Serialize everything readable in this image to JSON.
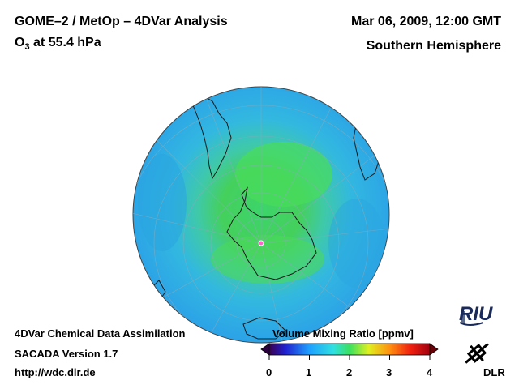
{
  "header": {
    "title": "GOME–2 / MetOp – 4DVar Analysis",
    "species": "O",
    "species_sub": "3",
    "level": " at 55.4 hPa",
    "date": "Mar 06, 2009, 12:00 GMT",
    "region": "Southern Hemisphere"
  },
  "footer": {
    "line1": "4DVar Chemical Data Assimilation",
    "line2": "SACADA Version 1.7",
    "line3": "http://wdc.dlr.de"
  },
  "colorbar": {
    "title": "Volume Mixing Ratio [ppmv]",
    "ticks": [
      "0",
      "1",
      "2",
      "3",
      "4"
    ],
    "min": 0,
    "max": 4
  },
  "logos": {
    "riu": "RIU",
    "dlr": "DLR"
  },
  "colors": {
    "ocean_field": "#2fb4e8",
    "mid": "#49c9c4",
    "high": "#3ed36a",
    "coast": "#1a1a1a"
  }
}
